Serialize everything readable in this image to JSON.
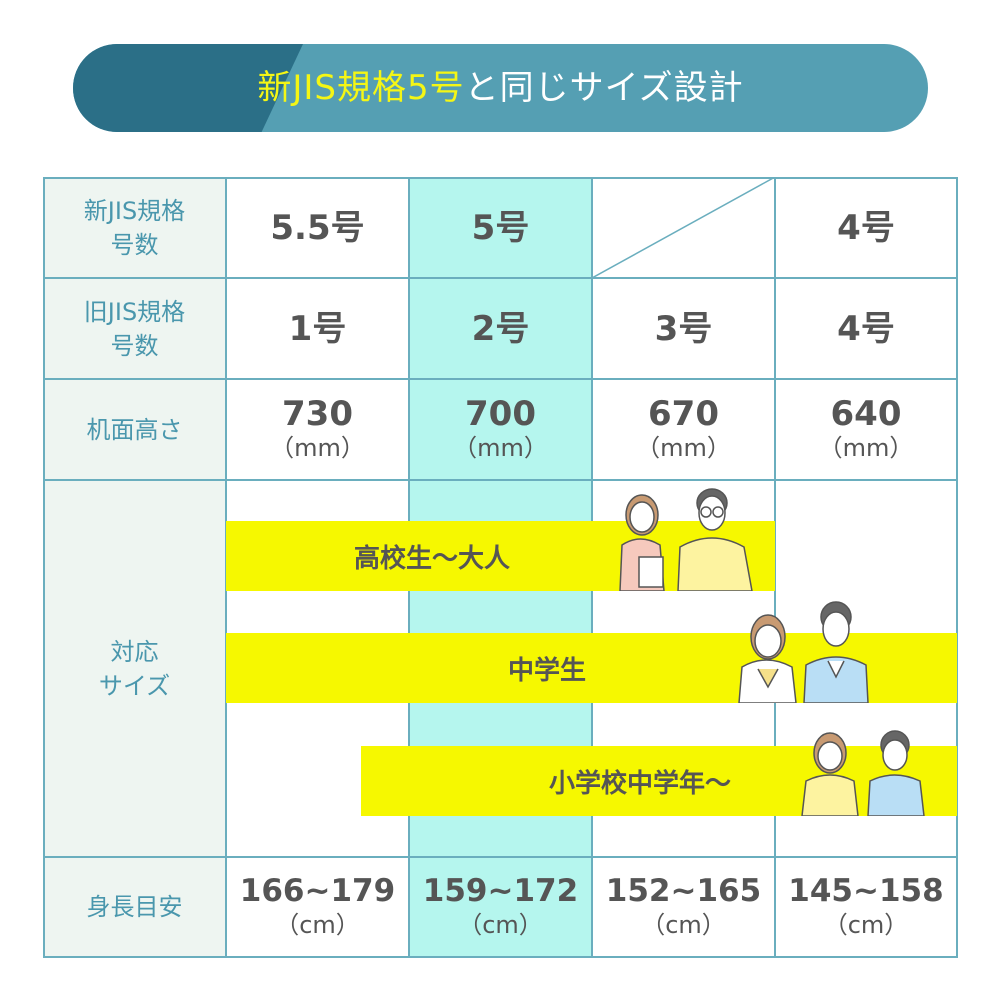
{
  "banner": {
    "title_highlight": "新JIS規格5号",
    "title_rest": "と同じサイズ設計"
  },
  "table": {
    "rows": [
      {
        "label_lines": [
          "新JIS規格",
          "号数"
        ],
        "values": [
          "5.5号",
          "5号",
          "",
          "4号"
        ]
      },
      {
        "label_lines": [
          "旧JIS規格",
          "号数"
        ],
        "values": [
          "1号",
          "2号",
          "3号",
          "4号"
        ]
      },
      {
        "label_lines": [
          "机面高さ"
        ],
        "values": [
          "730",
          "700",
          "670",
          "640"
        ],
        "unit": "（mm）"
      },
      {
        "label_lines": [
          "対応",
          "サイズ"
        ]
      },
      {
        "label_lines": [
          "身長目安"
        ],
        "values": [
          "166~179",
          "159~172",
          "152~165",
          "145~158"
        ],
        "unit": "（cm）"
      }
    ],
    "highlight_column": 2,
    "size_bars": [
      {
        "label": "高校生～大人"
      },
      {
        "label": "中学生"
      },
      {
        "label": "小学校中学年～"
      }
    ]
  },
  "colors": {
    "banner_dark": "#2b6f87",
    "banner_light": "#559fb3",
    "highlight_text": "#f4f615",
    "highlight_column": "#b5f6ee",
    "bar": "#f6f800",
    "border": "#6aaebe",
    "label_text": "#4a97ad"
  }
}
